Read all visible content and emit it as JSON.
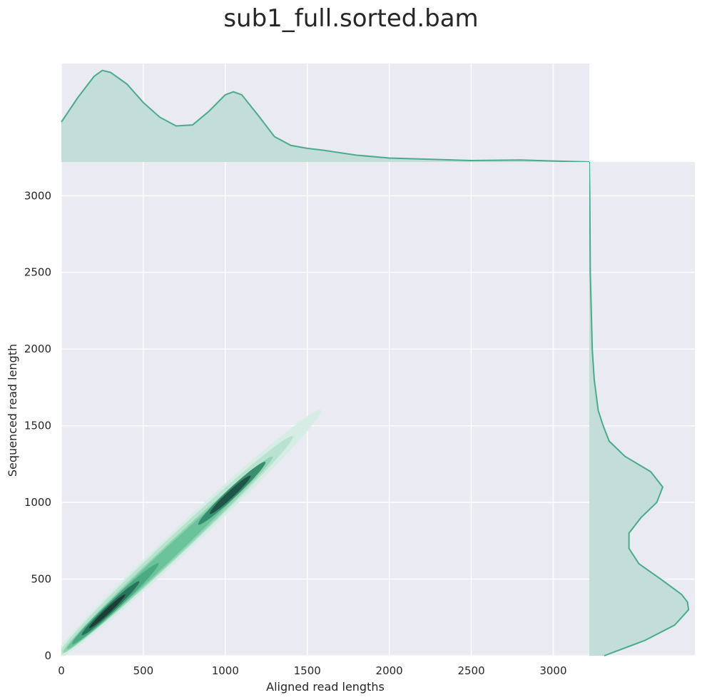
{
  "chart_data": {
    "type": "kde-joint",
    "title": "sub1_full.sorted.bam",
    "xlabel": "Aligned read lengths",
    "ylabel": "Sequenced read length",
    "xlim": [
      0,
      3220
    ],
    "ylim": [
      0,
      3220
    ],
    "xticks": [
      "0",
      "500",
      "1000",
      "1500",
      "2000",
      "2500",
      "3000"
    ],
    "yticks": [
      "0",
      "500",
      "1000",
      "1500",
      "2000",
      "2500",
      "3000"
    ],
    "grid": true,
    "colors": {
      "background": "#eaeaf2",
      "grid": "#ffffff",
      "line": "#4aab8c",
      "fill": "#c3ddd8",
      "contours": [
        "#d4ede4",
        "#b7e3cf",
        "#8ed2b1",
        "#68c29a",
        "#4aa883",
        "#358b6d",
        "#26705a",
        "#1c5243",
        "#1a3a30"
      ]
    },
    "marginal_x": {
      "x": [
        0,
        100,
        200,
        250,
        300,
        400,
        500,
        600,
        700,
        800,
        900,
        1000,
        1050,
        1100,
        1200,
        1300,
        1400,
        1500,
        1600,
        1800,
        2000,
        2500,
        2800,
        3000,
        3220
      ],
      "density": [
        0.41,
        0.66,
        0.88,
        0.94,
        0.92,
        0.8,
        0.61,
        0.46,
        0.37,
        0.38,
        0.52,
        0.69,
        0.72,
        0.69,
        0.48,
        0.26,
        0.17,
        0.14,
        0.12,
        0.07,
        0.04,
        0.015,
        0.02,
        0.01,
        0.0
      ]
    },
    "marginal_y": {
      "y": [
        0,
        100,
        200,
        300,
        350,
        400,
        500,
        600,
        700,
        800,
        900,
        1000,
        1100,
        1200,
        1300,
        1400,
        1500,
        1600,
        1800,
        2000,
        2500,
        3000,
        3220
      ],
      "density": [
        0.15,
        0.56,
        0.86,
        1.0,
        0.99,
        0.93,
        0.72,
        0.5,
        0.4,
        0.4,
        0.52,
        0.68,
        0.74,
        0.62,
        0.36,
        0.2,
        0.14,
        0.09,
        0.05,
        0.03,
        0.01,
        0.005,
        0.0
      ]
    },
    "joint_kde_levels": [
      {
        "cx": 760,
        "cy": 780,
        "length": 2250,
        "width": 150
      },
      {
        "cx": 700,
        "cy": 720,
        "length": 1950,
        "width": 120
      },
      {
        "cx": 650,
        "cy": 660,
        "length": 1750,
        "width": 95
      },
      {
        "cx": 600,
        "cy": 610,
        "length": 1550,
        "width": 75
      },
      {
        "cx": 330,
        "cy": 340,
        "length": 720,
        "width": 65
      },
      {
        "cx": 1040,
        "cy": 1060,
        "length": 560,
        "width": 60
      },
      {
        "cx": 300,
        "cy": 310,
        "length": 480,
        "width": 48
      },
      {
        "cx": 1030,
        "cy": 1050,
        "length": 340,
        "width": 42
      },
      {
        "cx": 280,
        "cy": 290,
        "length": 300,
        "width": 30
      }
    ]
  }
}
